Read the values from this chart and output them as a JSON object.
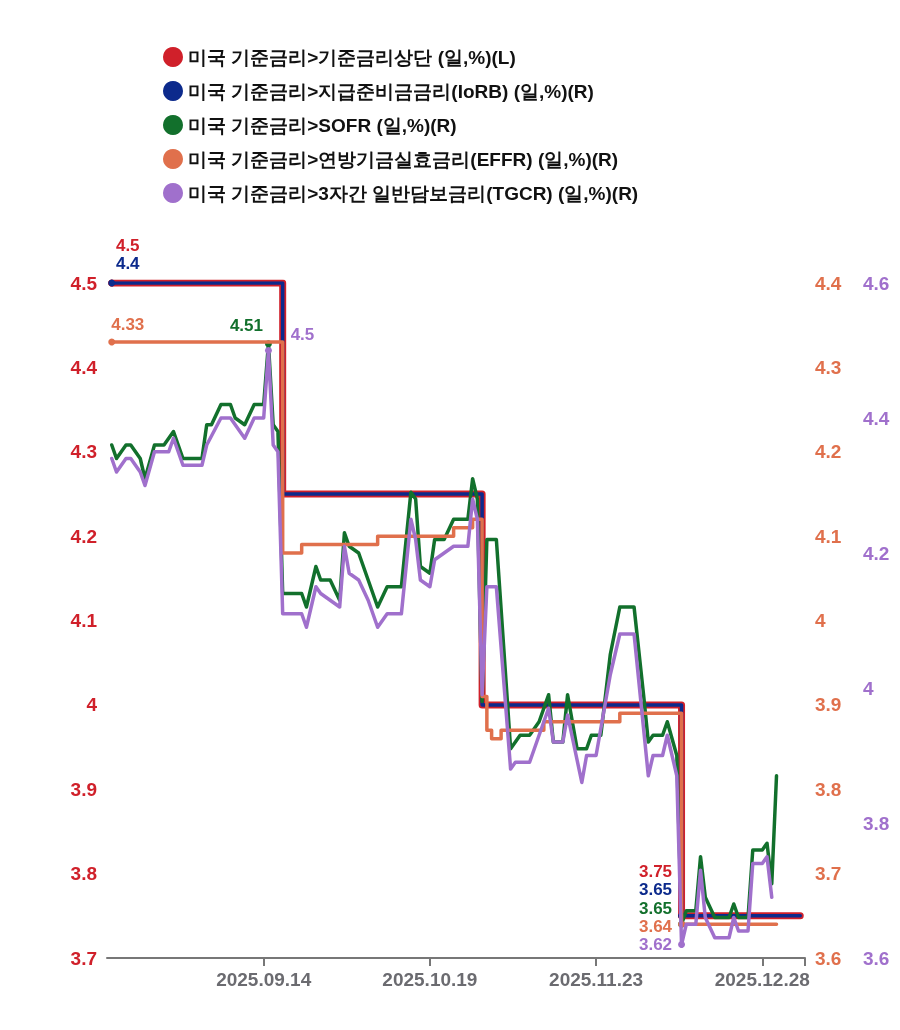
{
  "chart_data": {
    "type": "line",
    "legend": "top",
    "ylim": [
      3.7,
      4.5
    ],
    "yticks": [
      3.7,
      3.8,
      3.9,
      4,
      4.1,
      4.2,
      4.3,
      4.4,
      4.5
    ],
    "y2lim": [
      3.6,
      4.4
    ],
    "y2ticks": [
      3.6,
      3.7,
      3.8,
      3.9,
      4,
      4.1,
      4.2,
      4.3,
      4.4
    ],
    "y3lim": [
      3.6,
      4.6
    ],
    "y3ticks": [
      3.6,
      3.8,
      4,
      4.2,
      4.4,
      4.6
    ],
    "xlim": [
      "2025-08-12",
      "2026-01-06"
    ],
    "xticks": [
      {
        "value": "2025-09-14",
        "label": "2025.09.14"
      },
      {
        "value": "2025-10-19",
        "label": "2025.10.19"
      },
      {
        "value": "2025-11-23",
        "label": "2025.11.23"
      },
      {
        "value": "2025-12-28",
        "label": "2025.12.28"
      },
      {
        "value": "2026-01-06",
        "label": null
      }
    ],
    "series": [
      {
        "name": "미국 기준금리>기준금리상단 (일,%)(L)",
        "type": "step",
        "axis": "y",
        "color": "#d0202a",
        "x": [
          "2025-08-13",
          "2025-09-18",
          "2025-10-30",
          "2025-12-11",
          "2026-01-05"
        ],
        "values": [
          4.5,
          4.25,
          4.0,
          3.75,
          3.75
        ],
        "value_labels": [
          "4.5",
          null,
          null,
          "3.75",
          null
        ]
      },
      {
        "name": "미국 기준금리>지급준비금금리(IoRB) (일,%)(R)",
        "type": "step",
        "axis": "y2",
        "color": "#0c2a8c",
        "x": [
          "2025-08-13",
          "2025-09-18",
          "2025-10-30",
          "2025-12-11",
          "2026-01-05"
        ],
        "values": [
          4.4,
          4.15,
          3.9,
          3.65,
          3.65
        ],
        "value_labels": [
          "4.4",
          null,
          null,
          "3.65",
          null
        ]
      },
      {
        "name": "미국 기준금리>SOFR (일,%)(R)",
        "type": "line",
        "axis": "y3",
        "color": "#12702c",
        "x": [
          "2025-08-13",
          "2025-08-14",
          "2025-08-16",
          "2025-08-17",
          "2025-08-19",
          "2025-08-20",
          "2025-08-22",
          "2025-08-24",
          "2025-08-26",
          "2025-08-28",
          "2025-09-01",
          "2025-09-02",
          "2025-09-03",
          "2025-09-05",
          "2025-09-07",
          "2025-09-08",
          "2025-09-10",
          "2025-09-12",
          "2025-09-14",
          "2025-09-15",
          "2025-09-16",
          "2025-09-17",
          "2025-09-18",
          "2025-09-22",
          "2025-09-23",
          "2025-09-25",
          "2025-09-26",
          "2025-09-28",
          "2025-09-30",
          "2025-10-01",
          "2025-10-02",
          "2025-10-04",
          "2025-10-06",
          "2025-10-08",
          "2025-10-10",
          "2025-10-13",
          "2025-10-15",
          "2025-10-16",
          "2025-10-17",
          "2025-10-19",
          "2025-10-20",
          "2025-10-22",
          "2025-10-24",
          "2025-10-27",
          "2025-10-28",
          "2025-10-29",
          "2025-10-30",
          "2025-10-31",
          "2025-11-02",
          "2025-11-05",
          "2025-11-07",
          "2025-11-09",
          "2025-11-11",
          "2025-11-13",
          "2025-11-14",
          "2025-11-16",
          "2025-11-17",
          "2025-11-19",
          "2025-11-21",
          "2025-11-22",
          "2025-11-24",
          "2025-11-26",
          "2025-11-28",
          "2025-12-01",
          "2025-12-03",
          "2025-12-04",
          "2025-12-05",
          "2025-12-07",
          "2025-12-08",
          "2025-12-10",
          "2025-12-11",
          "2025-12-12",
          "2025-12-14",
          "2025-12-15",
          "2025-12-16",
          "2025-12-18",
          "2025-12-21",
          "2025-12-22",
          "2025-12-23",
          "2025-12-25",
          "2025-12-26",
          "2025-12-28",
          "2025-12-29",
          "2025-12-30",
          "2025-12-31"
        ],
        "values": [
          4.36,
          4.34,
          4.36,
          4.36,
          4.34,
          4.31,
          4.36,
          4.36,
          4.38,
          4.34,
          4.34,
          4.39,
          4.39,
          4.42,
          4.42,
          4.4,
          4.39,
          4.42,
          4.42,
          4.51,
          4.39,
          4.38,
          4.14,
          4.14,
          4.12,
          4.18,
          4.16,
          4.16,
          4.13,
          4.23,
          4.21,
          4.2,
          4.16,
          4.12,
          4.15,
          4.15,
          4.29,
          4.28,
          4.18,
          4.17,
          4.22,
          4.22,
          4.25,
          4.25,
          4.31,
          4.28,
          3.98,
          4.22,
          4.22,
          3.91,
          3.93,
          3.93,
          3.95,
          3.99,
          3.92,
          3.92,
          3.99,
          3.91,
          3.91,
          3.93,
          3.93,
          4.05,
          4.12,
          4.12,
          3.99,
          3.92,
          3.93,
          3.93,
          3.95,
          3.9,
          3.65,
          3.67,
          3.67,
          3.75,
          3.69,
          3.66,
          3.66,
          3.68,
          3.66,
          3.66,
          3.76,
          3.76,
          3.77,
          3.71,
          3.87
        ],
        "value_labels": [
          null,
          null,
          null,
          null,
          null,
          null,
          null,
          null,
          null,
          null,
          null,
          null,
          null,
          null,
          null,
          null,
          null,
          null,
          null,
          "4.51",
          null,
          null,
          null,
          null,
          null,
          null,
          null,
          null,
          null,
          null,
          null,
          null,
          null,
          null,
          null,
          null,
          null,
          null,
          null,
          null,
          null,
          null,
          null,
          null,
          null,
          null,
          null,
          null,
          null,
          null,
          null,
          null,
          null,
          null,
          null,
          null,
          null,
          null,
          null,
          null,
          null,
          null,
          null,
          null,
          null,
          null,
          null,
          null,
          null,
          null,
          "3.65",
          null,
          null,
          null,
          null,
          null,
          null,
          null,
          null,
          null,
          null,
          null,
          null,
          null,
          null
        ]
      },
      {
        "name": "미국 기준금리>연방기금실효금리(EFFR) (일,%)(R)",
        "type": "step",
        "axis": "y2",
        "color": "#e0704c",
        "x": [
          "2025-08-13",
          "2025-09-18",
          "2025-09-22",
          "2025-10-08",
          "2025-10-24",
          "2025-10-28",
          "2025-10-30",
          "2025-10-31",
          "2025-11-01",
          "2025-11-03",
          "2025-11-12",
          "2025-11-28",
          "2025-12-11",
          "2025-12-31"
        ],
        "values": [
          4.33,
          4.08,
          4.09,
          4.1,
          4.11,
          4.12,
          3.91,
          3.87,
          3.86,
          3.87,
          3.88,
          3.89,
          3.64,
          3.64
        ],
        "value_labels": [
          "4.33",
          null,
          null,
          null,
          null,
          null,
          null,
          null,
          null,
          null,
          null,
          null,
          "3.64",
          null
        ]
      },
      {
        "name": "미국 기준금리>3자간 일반담보금리(TGCR) (일,%)(R)",
        "type": "line",
        "axis": "y3",
        "color": "#a070cc",
        "x": [
          "2025-08-13",
          "2025-08-14",
          "2025-08-16",
          "2025-08-17",
          "2025-08-19",
          "2025-08-20",
          "2025-08-22",
          "2025-08-25",
          "2025-08-26",
          "2025-08-28",
          "2025-09-01",
          "2025-09-02",
          "2025-09-05",
          "2025-09-07",
          "2025-09-10",
          "2025-09-12",
          "2025-09-14",
          "2025-09-15",
          "2025-09-16",
          "2025-09-17",
          "2025-09-18",
          "2025-09-22",
          "2025-09-23",
          "2025-09-25",
          "2025-09-26",
          "2025-09-28",
          "2025-09-30",
          "2025-10-01",
          "2025-10-02",
          "2025-10-04",
          "2025-10-06",
          "2025-10-08",
          "2025-10-10",
          "2025-10-13",
          "2025-10-15",
          "2025-10-16",
          "2025-10-17",
          "2025-10-19",
          "2025-10-20",
          "2025-10-22",
          "2025-10-24",
          "2025-10-27",
          "2025-10-28",
          "2025-10-29",
          "2025-10-30",
          "2025-10-31",
          "2025-11-02",
          "2025-11-05",
          "2025-11-06",
          "2025-11-09",
          "2025-11-11",
          "2025-11-13",
          "2025-11-14",
          "2025-11-16",
          "2025-11-17",
          "2025-11-20",
          "2025-11-21",
          "2025-11-23",
          "2025-11-26",
          "2025-11-28",
          "2025-12-01",
          "2025-12-04",
          "2025-12-05",
          "2025-12-07",
          "2025-12-08",
          "2025-12-10",
          "2025-12-11",
          "2025-12-12",
          "2025-12-14",
          "2025-12-15",
          "2025-12-16",
          "2025-12-18",
          "2025-12-21",
          "2025-12-22",
          "2025-12-23",
          "2025-12-25",
          "2025-12-26",
          "2025-12-28",
          "2025-12-29",
          "2025-12-30"
        ],
        "values": [
          4.34,
          4.32,
          4.34,
          4.34,
          4.32,
          4.3,
          4.35,
          4.35,
          4.37,
          4.33,
          4.33,
          4.36,
          4.4,
          4.4,
          4.37,
          4.4,
          4.4,
          4.5,
          4.36,
          4.35,
          4.11,
          4.11,
          4.09,
          4.15,
          4.14,
          4.13,
          4.12,
          4.21,
          4.17,
          4.16,
          4.13,
          4.09,
          4.11,
          4.11,
          4.25,
          4.22,
          4.16,
          4.15,
          4.19,
          4.2,
          4.21,
          4.21,
          4.28,
          4.25,
          3.99,
          4.15,
          4.15,
          3.88,
          3.89,
          3.89,
          3.93,
          3.97,
          3.92,
          3.92,
          3.96,
          3.86,
          3.9,
          3.9,
          4.02,
          4.08,
          4.08,
          3.87,
          3.9,
          3.9,
          3.93,
          3.87,
          3.62,
          3.65,
          3.65,
          3.73,
          3.66,
          3.63,
          3.63,
          3.66,
          3.64,
          3.64,
          3.74,
          3.74,
          3.75,
          3.69
        ],
        "value_labels": [
          null,
          null,
          null,
          null,
          null,
          null,
          null,
          null,
          null,
          null,
          null,
          null,
          null,
          null,
          null,
          null,
          null,
          "4.5",
          null,
          null,
          null,
          null,
          null,
          null,
          null,
          null,
          null,
          null,
          null,
          null,
          null,
          null,
          null,
          null,
          null,
          null,
          null,
          null,
          null,
          null,
          null,
          null,
          null,
          null,
          null,
          null,
          null,
          null,
          null,
          null,
          null,
          null,
          null,
          null,
          null,
          null,
          null,
          null,
          null,
          null,
          null,
          null,
          null,
          null,
          null,
          null,
          "3.62",
          null,
          null,
          null,
          null,
          null,
          null,
          null,
          null,
          null,
          null,
          null,
          null,
          null
        ]
      }
    ]
  }
}
